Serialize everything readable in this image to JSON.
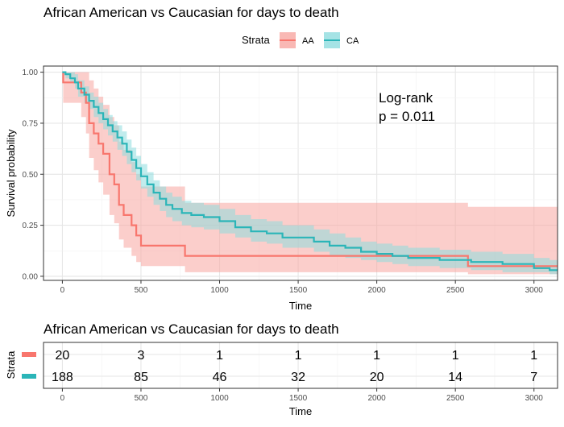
{
  "title": "African American vs Caucasian for days to death",
  "legend": {
    "title": "Strata",
    "items": [
      {
        "label": "AA",
        "color": "#F8766D",
        "fill": "#F8A6A1"
      },
      {
        "label": "CA",
        "color": "#2BB5B8",
        "fill": "#8EDCDE"
      }
    ]
  },
  "chart_data": [
    {
      "type": "line",
      "subtype": "kaplan-meier",
      "title": "African American vs Caucasian for days to death",
      "xlabel": "Time",
      "ylabel": "Survival probability",
      "xlim": [
        -120,
        3150
      ],
      "ylim": [
        -0.02,
        1.03
      ],
      "xticks": [
        0,
        500,
        1000,
        1500,
        2000,
        2500,
        3000
      ],
      "yticks": [
        0.0,
        0.25,
        0.5,
        0.75,
        1.0
      ],
      "ytick_labels": [
        "0.00",
        "0.25",
        "0.50",
        "0.75",
        "1.00"
      ],
      "grid": true,
      "legend_position": "top",
      "annotation": {
        "line1": "Log-rank",
        "line2": "p = 0.011",
        "x": 2000,
        "y": 0.86
      },
      "series": [
        {
          "name": "AA",
          "color": "#F8766D",
          "x": [
            0,
            5,
            60,
            80,
            90,
            120,
            150,
            170,
            200,
            230,
            260,
            300,
            330,
            360,
            390,
            440,
            470,
            500,
            780,
            2580,
            3150
          ],
          "y": [
            1.0,
            0.95,
            0.95,
            0.95,
            0.95,
            0.9,
            0.85,
            0.75,
            0.7,
            0.65,
            0.6,
            0.5,
            0.45,
            0.35,
            0.3,
            0.25,
            0.2,
            0.15,
            0.1,
            0.05,
            0.05
          ],
          "lower": [
            1.0,
            0.85,
            0.85,
            0.85,
            0.85,
            0.78,
            0.7,
            0.58,
            0.52,
            0.46,
            0.4,
            0.3,
            0.26,
            0.18,
            0.14,
            0.1,
            0.07,
            0.05,
            0.02,
            0.01,
            0.01
          ],
          "upper": [
            1.0,
            1.0,
            1.0,
            1.0,
            1.0,
            1.0,
            1.0,
            0.96,
            0.92,
            0.88,
            0.84,
            0.78,
            0.74,
            0.66,
            0.62,
            0.56,
            0.5,
            0.44,
            0.36,
            0.34,
            0.34
          ]
        },
        {
          "name": "CA",
          "color": "#2BB5B8",
          "x": [
            0,
            20,
            50,
            80,
            100,
            140,
            170,
            200,
            230,
            260,
            290,
            320,
            350,
            380,
            410,
            440,
            470,
            500,
            540,
            580,
            620,
            660,
            700,
            760,
            820,
            900,
            1000,
            1100,
            1200,
            1300,
            1400,
            1500,
            1600,
            1700,
            1800,
            1900,
            2000,
            2100,
            2200,
            2400,
            2600,
            2800,
            3000,
            3100,
            3150
          ],
          "y": [
            1.0,
            0.99,
            0.97,
            0.95,
            0.92,
            0.89,
            0.86,
            0.83,
            0.8,
            0.77,
            0.74,
            0.71,
            0.68,
            0.65,
            0.61,
            0.57,
            0.53,
            0.49,
            0.45,
            0.41,
            0.38,
            0.35,
            0.33,
            0.31,
            0.3,
            0.29,
            0.27,
            0.24,
            0.22,
            0.21,
            0.19,
            0.19,
            0.17,
            0.15,
            0.14,
            0.12,
            0.11,
            0.1,
            0.09,
            0.08,
            0.07,
            0.06,
            0.04,
            0.03,
            0.03
          ],
          "lower": [
            1.0,
            0.97,
            0.95,
            0.92,
            0.88,
            0.85,
            0.82,
            0.78,
            0.75,
            0.72,
            0.69,
            0.66,
            0.62,
            0.59,
            0.55,
            0.51,
            0.47,
            0.43,
            0.39,
            0.35,
            0.32,
            0.29,
            0.27,
            0.25,
            0.24,
            0.23,
            0.21,
            0.19,
            0.17,
            0.16,
            0.14,
            0.14,
            0.12,
            0.1,
            0.09,
            0.08,
            0.07,
            0.06,
            0.05,
            0.04,
            0.03,
            0.02,
            0.02,
            0.01,
            0.01
          ],
          "upper": [
            1.0,
            1.0,
            1.0,
            0.99,
            0.96,
            0.93,
            0.9,
            0.88,
            0.85,
            0.82,
            0.79,
            0.76,
            0.74,
            0.71,
            0.67,
            0.63,
            0.59,
            0.55,
            0.51,
            0.47,
            0.44,
            0.41,
            0.39,
            0.37,
            0.36,
            0.35,
            0.33,
            0.3,
            0.28,
            0.27,
            0.25,
            0.25,
            0.23,
            0.21,
            0.19,
            0.17,
            0.16,
            0.15,
            0.14,
            0.13,
            0.12,
            0.11,
            0.09,
            0.08,
            0.08
          ]
        }
      ]
    },
    {
      "type": "table",
      "title": "African American vs Caucasian for days to death",
      "xlabel": "Time",
      "ylabel": "Strata",
      "xticks": [
        0,
        500,
        1000,
        1500,
        2000,
        2500,
        3000
      ],
      "rows": [
        {
          "name": "AA",
          "color": "#F8766D",
          "values": [
            20,
            3,
            1,
            1,
            1,
            1,
            1
          ]
        },
        {
          "name": "CA",
          "color": "#2BB5B8",
          "values": [
            188,
            85,
            46,
            32,
            20,
            14,
            7
          ]
        }
      ]
    }
  ]
}
